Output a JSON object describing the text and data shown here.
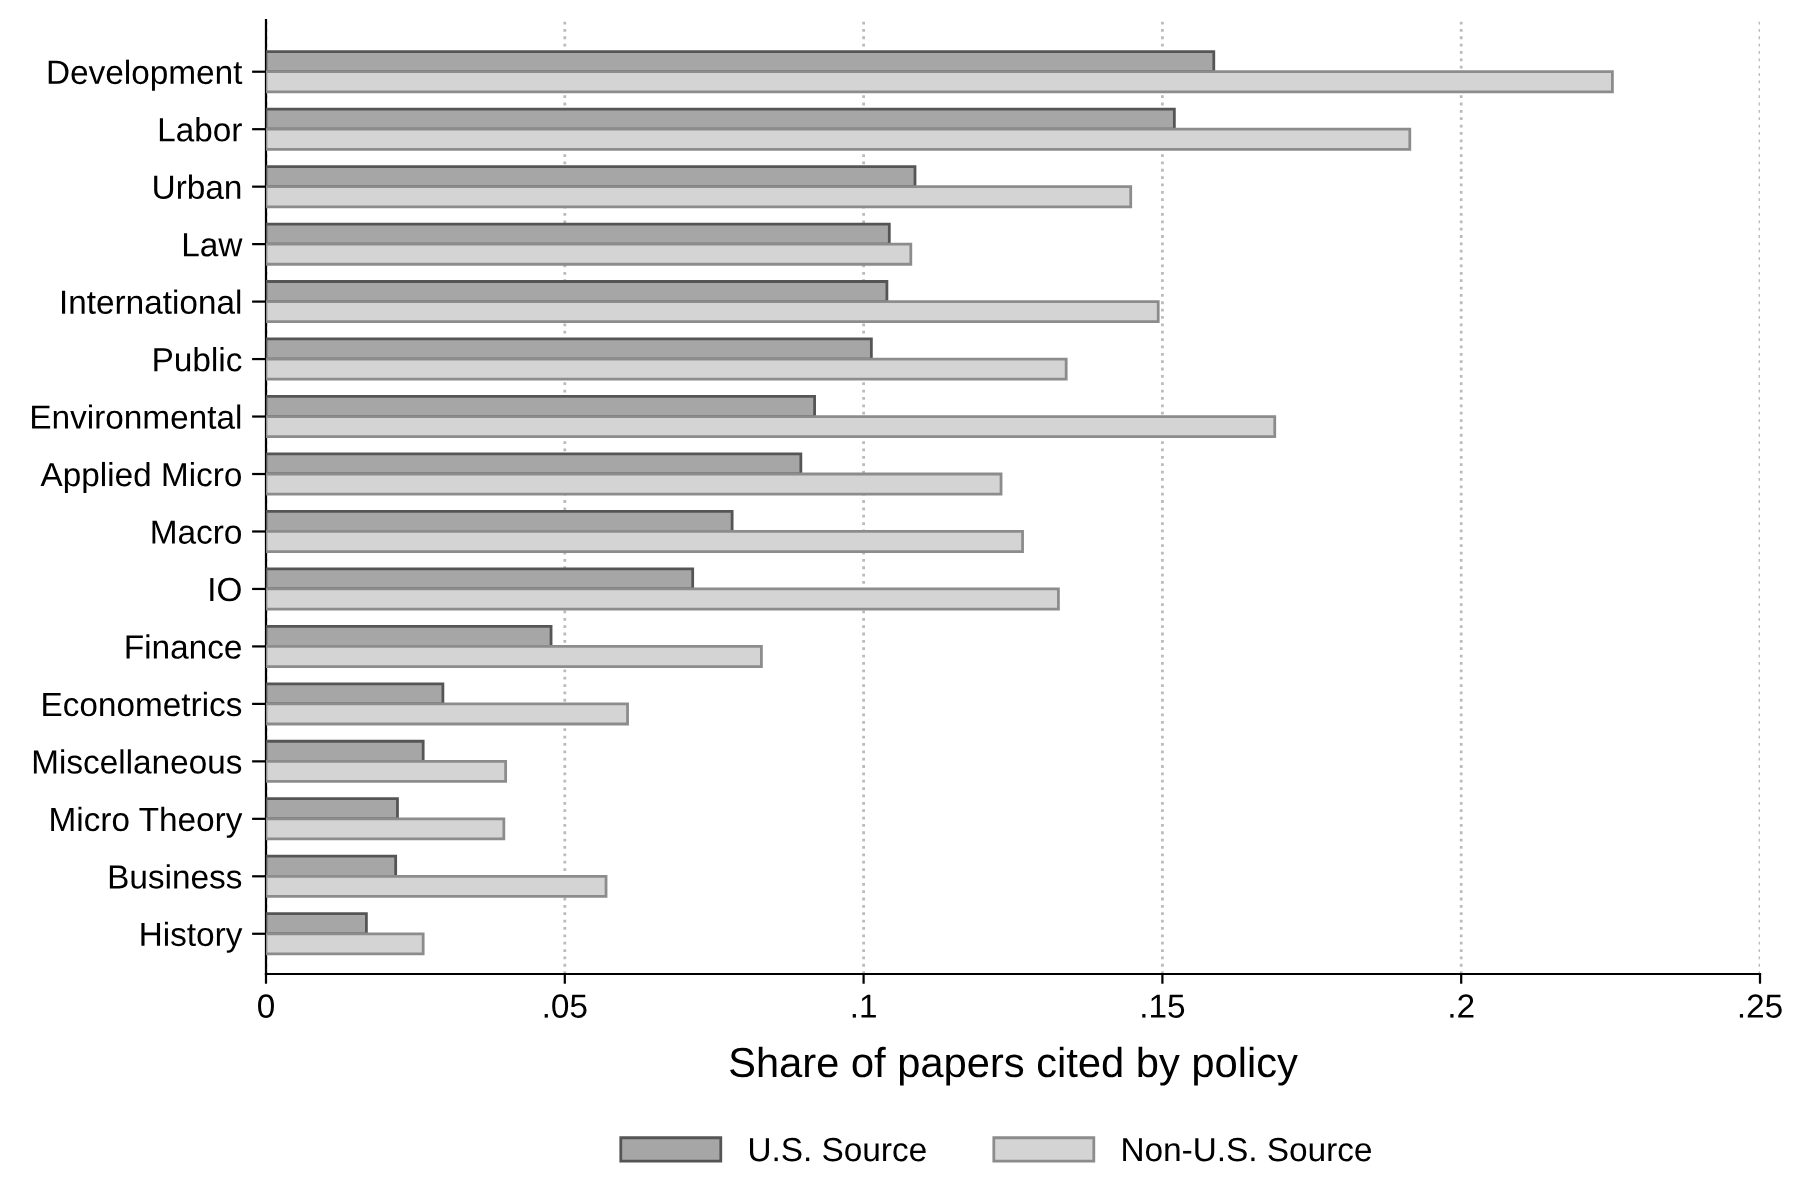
{
  "chart_data": {
    "type": "bar",
    "orientation": "horizontal",
    "xlabel": "Share of papers cited by policy",
    "categories": [
      "Development",
      "Labor",
      "Urban",
      "Law",
      "International",
      "Public",
      "Environmental",
      "Applied Micro",
      "Macro",
      "IO",
      "Finance",
      "Econometrics",
      "Miscellaneous",
      "Micro Theory",
      "Business",
      "History"
    ],
    "series": [
      {
        "name": "U.S. Source",
        "color": "#a6a6a6",
        "values": [
          0.1586,
          0.152,
          0.1086,
          0.1043,
          0.1039,
          0.1013,
          0.0918,
          0.0895,
          0.078,
          0.0714,
          0.0477,
          0.0296,
          0.0263,
          0.022,
          0.0217,
          0.0168
        ]
      },
      {
        "name": "Non-U.S. Source",
        "color": "#d4d4d4",
        "values": [
          0.2253,
          0.1914,
          0.1447,
          0.1079,
          0.1493,
          0.1339,
          0.1688,
          0.123,
          0.1266,
          0.1326,
          0.0829,
          0.0605,
          0.0401,
          0.0398,
          0.0569,
          0.0263
        ]
      }
    ],
    "xlim": [
      0,
      0.25
    ],
    "xticks": [
      0,
      {
        "value": 0.05,
        "label": ".05"
      },
      {
        "value": 0.1,
        "label": ".1"
      },
      {
        "value": 0.15,
        "label": ".15"
      },
      {
        "value": 0.2,
        "label": ".2"
      },
      {
        "value": 0.25,
        "label": ".25"
      }
    ],
    "grid": "x",
    "legend": "bottom"
  }
}
